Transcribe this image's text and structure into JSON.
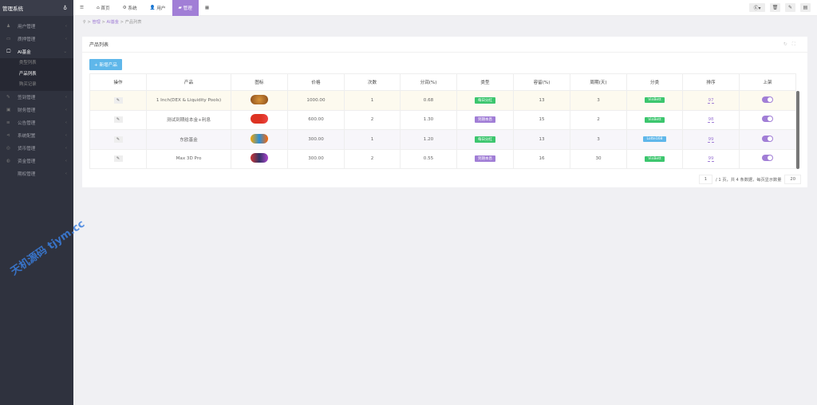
{
  "sidebar": {
    "brand": "管理系统",
    "items": [
      {
        "label": "用户管理",
        "icon": "user-icon"
      },
      {
        "label": "质押管理",
        "icon": "card-icon"
      },
      {
        "label": "AI基金",
        "icon": "monitor-icon",
        "active": true
      },
      {
        "label": "签到管理",
        "icon": "edit-icon"
      },
      {
        "label": "财务管理",
        "icon": "money-icon"
      },
      {
        "label": "公告管理",
        "icon": "list-icon"
      },
      {
        "label": "系统配置",
        "icon": "share-icon"
      },
      {
        "label": "货币管理",
        "icon": "coin-icon"
      },
      {
        "label": "资金管理",
        "icon": "wallet-icon"
      },
      {
        "label": "期权管理",
        "icon": ""
      }
    ],
    "sub": [
      "类型列表",
      "产品列表",
      "购买记录"
    ]
  },
  "topbar": {
    "tabs": [
      "首页",
      "系统",
      "用户",
      "管理"
    ],
    "active": "管理"
  },
  "breadcrumb": [
    "管理",
    "AI基金",
    "产品列表"
  ],
  "card": {
    "title": "产品列表",
    "add_label": "+ 新增产品"
  },
  "table": {
    "headers": [
      "操作",
      "产品",
      "图标",
      "价格",
      "次数",
      "分润(%)",
      "类型",
      "容留(%)",
      "周期(天)",
      "分类",
      "排序",
      "上架"
    ],
    "rows": [
      {
        "name": "1 Inch(DEX & Liquidity Pools)",
        "price": "1000.00",
        "times": "1",
        "share": "0.68",
        "type": "每日分红",
        "type_color": "#3cc66e",
        "retain": "13",
        "period": "3",
        "cat": "VinBett",
        "cat_color": "#3cc66e",
        "sort": "97",
        "on": true
      },
      {
        "name": "测试到期给本金+利息",
        "price": "600.00",
        "times": "2",
        "share": "1.30",
        "type": "到期本息",
        "type_color": "#a17ed6",
        "retain": "15",
        "period": "2",
        "cat": "VinBett",
        "cat_color": "#3cc66e",
        "sort": "98",
        "on": true
      },
      {
        "name": "东欧基金",
        "price": "300.00",
        "times": "1",
        "share": "1.20",
        "type": "每日分红",
        "type_color": "#3cc66e",
        "retain": "13",
        "period": "3",
        "cat": "Lotte168",
        "cat_color": "#5fb7ea",
        "sort": "99",
        "on": true
      },
      {
        "name": "Max 3D Pro",
        "price": "300.00",
        "times": "2",
        "share": "0.55",
        "type": "到期本息",
        "type_color": "#a17ed6",
        "retain": "16",
        "period": "30",
        "cat": "VinBett",
        "cat_color": "#3cc66e",
        "sort": "99",
        "on": true
      }
    ]
  },
  "pager": {
    "page": "1",
    "text": "/ 1 页，共 4 条数据，每页显示数量",
    "size": "20"
  },
  "watermark": "天机源码 tjym.cc"
}
